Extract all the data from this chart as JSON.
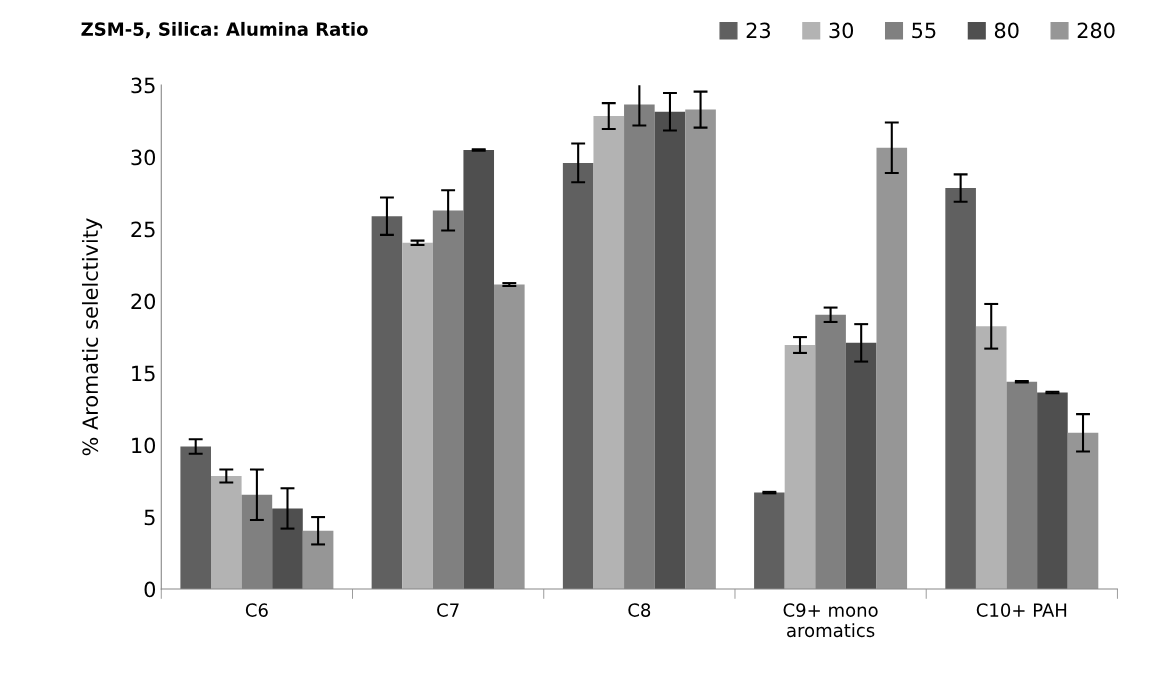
{
  "chart_data": {
    "type": "bar",
    "title": "ZSM-5, Silica: Alumina Ratio",
    "ylabel": "% Aromatic selelctivity",
    "categories": [
      "C6",
      "C7",
      "C8",
      "C9+ mono\naromatics",
      "C10+ PAH"
    ],
    "series": [
      {
        "name": "23",
        "color": "#606060",
        "values": [
          9.9,
          25.9,
          29.6,
          6.7,
          27.85
        ],
        "errors": [
          0.5,
          1.3,
          1.35,
          0.05,
          0.95
        ]
      },
      {
        "name": "30",
        "color": "#b3b3b3",
        "values": [
          7.85,
          24.05,
          32.85,
          16.95,
          18.25
        ],
        "errors": [
          0.45,
          0.15,
          0.9,
          0.55,
          1.55
        ]
      },
      {
        "name": "55",
        "color": "#808080",
        "values": [
          6.55,
          26.3,
          33.65,
          19.05,
          14.4
        ],
        "errors": [
          1.75,
          1.4,
          1.45,
          0.5,
          0.05
        ]
      },
      {
        "name": "80",
        "color": "#4f4f4f",
        "values": [
          5.6,
          30.5,
          33.15,
          17.1,
          13.65
        ],
        "errors": [
          1.4,
          0.05,
          1.3,
          1.3,
          0.05
        ]
      },
      {
        "name": "280",
        "color": "#969696",
        "values": [
          4.05,
          21.15,
          33.3,
          30.65,
          10.85
        ],
        "errors": [
          0.95,
          0.1,
          1.25,
          1.75,
          1.3
        ]
      }
    ],
    "ylim": [
      0,
      35
    ],
    "yticks": [
      0,
      5,
      10,
      15,
      20,
      25,
      30,
      35
    ],
    "grid": false,
    "legend": "top right"
  }
}
